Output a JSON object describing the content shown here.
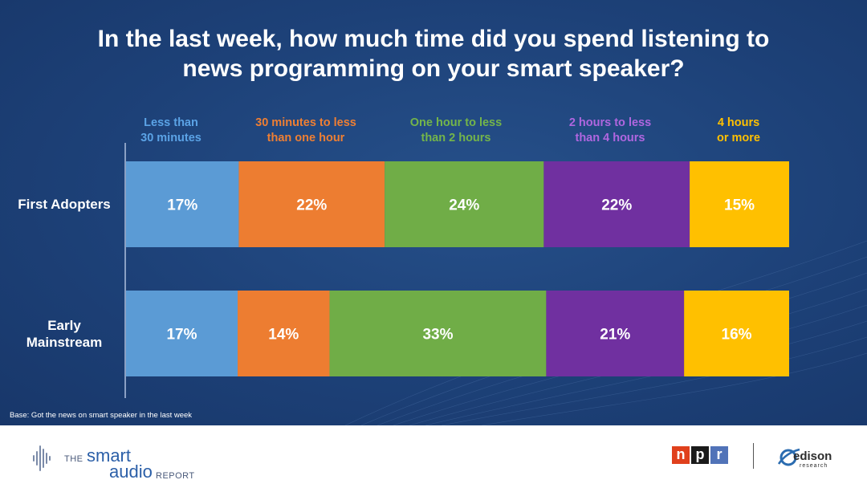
{
  "title_lines": [
    "In the last week, how much time did you spend listening to",
    "news programming on your smart speaker?"
  ],
  "base_note": "Base: Got the news on smart speaker in the last week",
  "colors": {
    "background": "#1f4479",
    "text": "#ffffff"
  },
  "chart_data": {
    "type": "bar",
    "orientation": "horizontal",
    "stacked": true,
    "normalized": true,
    "title": "In the last week, how much time did you spend listening to news programming on your smart speaker?",
    "categories": [
      "First Adopters",
      "Early Mainstream"
    ],
    "category_labels": [
      "First Adopters",
      "Early\nMainstream"
    ],
    "unit": "%",
    "series": [
      {
        "name": "Less than 30 minutes",
        "label": "Less than\n30 minutes",
        "color": "#5b9bd5",
        "label_color": "#5ba3e6",
        "values": [
          17,
          17
        ],
        "value_labels": [
          "17%",
          "17%"
        ]
      },
      {
        "name": "30 minutes to less than one hour",
        "label": "30 minutes to less\nthan one hour",
        "color": "#ed7d31",
        "label_color": "#ef7f33",
        "values": [
          22,
          14
        ],
        "value_labels": [
          "22%",
          "14%"
        ]
      },
      {
        "name": "One hour to less than 2 hours",
        "label": "One hour to less\nthan 2 hours",
        "color": "#70ad47",
        "label_color": "#74b54a",
        "values": [
          24,
          33
        ],
        "value_labels": [
          "24%",
          "33%"
        ]
      },
      {
        "name": "2 hours to less than 4 hours",
        "label": "2 hours to less\nthan 4 hours",
        "color": "#7030a0",
        "label_color": "#b066e0",
        "values": [
          22,
          21
        ],
        "value_labels": [
          "22%",
          "21%"
        ]
      },
      {
        "name": "4 hours or more",
        "label": "4 hours\nor more",
        "color": "#ffc000",
        "label_color": "#ffc000",
        "values": [
          15,
          16
        ],
        "value_labels": [
          "15%",
          "16%"
        ]
      }
    ]
  },
  "footer": {
    "sar_the": "THE",
    "sar_smart": "smart",
    "sar_audio": "audio",
    "sar_report": "REPORT",
    "npr_letters": [
      "n",
      "p",
      "r"
    ],
    "npr_colors": [
      "#e0401c",
      "#1a1a1a",
      "#5173b8"
    ],
    "edison_word": "edison",
    "edison_sub": "research"
  }
}
